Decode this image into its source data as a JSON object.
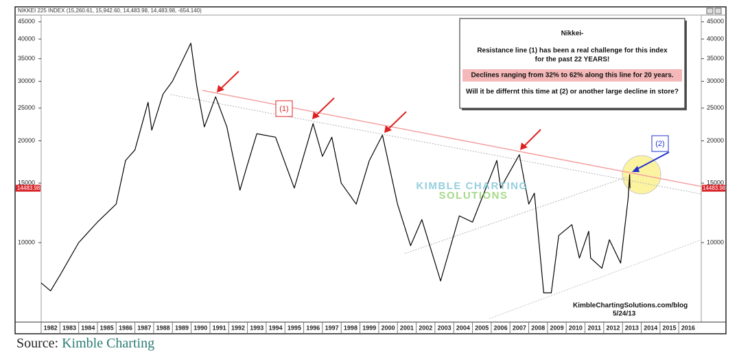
{
  "header": {
    "symbol": "NIKKEI 225 INDEX (15,260.61, 15,942.60, 14,483.98, 14,483.98, -654.140)"
  },
  "chart_data": {
    "type": "line",
    "log_scale": true,
    "grid": false,
    "series": [
      {
        "name": "Nikkei 225",
        "color": "#000000",
        "x": [
          1982.0,
          1982.5,
          1983.0,
          1984.0,
          1985.0,
          1986.0,
          1986.5,
          1987.0,
          1987.7,
          1987.9,
          1988.5,
          1989.0,
          1989.98,
          1990.3,
          1990.7,
          1990.9,
          1991.3,
          1991.9,
          1992.6,
          1993.0,
          1993.5,
          1994.5,
          1995.5,
          1996.5,
          1997.0,
          1997.5,
          1998.0,
          1998.8,
          1999.5,
          2000.2,
          2001.0,
          2001.7,
          2002.3,
          2003.3,
          2004.3,
          2005.0,
          2006.3,
          2006.5,
          2007.5,
          2008.0,
          2008.3,
          2008.8,
          2009.2,
          2009.6,
          2010.3,
          2010.7,
          2011.2,
          2011.3,
          2011.9,
          2012.3,
          2012.9,
          2013.3,
          2013.38,
          2013.4
        ],
        "values": [
          7600,
          7200,
          8000,
          10000,
          11500,
          13000,
          17500,
          18800,
          26000,
          21500,
          27500,
          30000,
          38900,
          29000,
          22000,
          23500,
          27000,
          22000,
          14300,
          17000,
          21000,
          20500,
          14500,
          22500,
          18000,
          20500,
          15000,
          13000,
          17500,
          20800,
          13000,
          9800,
          11700,
          7700,
          12000,
          11500,
          17500,
          14500,
          18200,
          13000,
          14000,
          7100,
          7100,
          10500,
          11300,
          9000,
          10800,
          9000,
          8400,
          10200,
          8700,
          13500,
          15900,
          14484
        ]
      }
    ],
    "last_value": 14483.98,
    "trendlines": [
      {
        "x": [
          1990.6,
          2017.2
        ],
        "y": [
          28200,
          14660
        ],
        "color": "#f4a0a0"
      },
      {
        "x": [
          1988.9,
          2017.2
        ],
        "y": [
          27400,
          13930
        ],
        "color": "#b0b0b0"
      },
      {
        "x": [
          2001.4,
          2013.3
        ],
        "y": [
          9290,
          15670
        ],
        "color": "#b0b0b0"
      },
      {
        "x": [
          2005.9,
          2017.2
        ],
        "y": [
          5960,
          10190
        ],
        "color": "#c0c0c0"
      }
    ],
    "xlim": [
      1982,
      2017.2
    ],
    "ylim": [
      5820,
      47100
    ],
    "xticks": [
      {
        "value": 1982.5,
        "label": "1982"
      },
      {
        "value": 1983.5,
        "label": "1983"
      },
      {
        "value": 1984.5,
        "label": "1984"
      },
      {
        "value": 1985.5,
        "label": "1985"
      },
      {
        "value": 1986.5,
        "label": "1986"
      },
      {
        "value": 1987.5,
        "label": "1987"
      },
      {
        "value": 1988.5,
        "label": "1988"
      },
      {
        "value": 1989.5,
        "label": "1989"
      },
      {
        "value": 1990.5,
        "label": "1990"
      },
      {
        "value": 1991.5,
        "label": "1991"
      },
      {
        "value": 1992.5,
        "label": "1992"
      },
      {
        "value": 1993.5,
        "label": "1993"
      },
      {
        "value": 1994.5,
        "label": "1994"
      },
      {
        "value": 1995.5,
        "label": "1995"
      },
      {
        "value": 1996.5,
        "label": "1996"
      },
      {
        "value": 1997.5,
        "label": "1997"
      },
      {
        "value": 1998.5,
        "label": "1998"
      },
      {
        "value": 1999.5,
        "label": "1999"
      },
      {
        "value": 2000.5,
        "label": "2000"
      },
      {
        "value": 2001.5,
        "label": "2001"
      },
      {
        "value": 2002.5,
        "label": "2002"
      },
      {
        "value": 2003.5,
        "label": "2003"
      },
      {
        "value": 2004.5,
        "label": "2004"
      },
      {
        "value": 2005.5,
        "label": "2005"
      },
      {
        "value": 2006.5,
        "label": "2006"
      },
      {
        "value": 2007.5,
        "label": "2007"
      },
      {
        "value": 2008.5,
        "label": "2008"
      },
      {
        "value": 2009.5,
        "label": "2009"
      },
      {
        "value": 2010.5,
        "label": "2010"
      },
      {
        "value": 2011.5,
        "label": "2011"
      },
      {
        "value": 2012.5,
        "label": "2012"
      },
      {
        "value": 2013.5,
        "label": "2013"
      },
      {
        "value": 2014.5,
        "label": "2014"
      },
      {
        "value": 2015.5,
        "label": "2015"
      },
      {
        "value": 2016.5,
        "label": "2016"
      }
    ],
    "yticks": [
      10000,
      15000,
      20000,
      25000,
      30000,
      35000,
      40000,
      45000
    ],
    "annotations": {
      "box_title": "Nikkei-",
      "box_line1": "Resistance line (1) has been a real challenge for this index",
      "box_line2": "for the past 22 YEARS!",
      "box_highlight": "Declines ranging from 32% to 62% along this line for  20 years.",
      "box_question": "Will it be differnt this time at (2) or another large decline in store?",
      "label1": "(1)",
      "label2": "(2)",
      "watermark1": "KIMBLE CHARTING",
      "watermark2": "SOLUTIONS",
      "site": "KimbleChartingSolutions.com/blog",
      "date": "5/24/13"
    }
  },
  "footer": {
    "prefix": "Source:",
    "link": "Kimble Charting"
  }
}
